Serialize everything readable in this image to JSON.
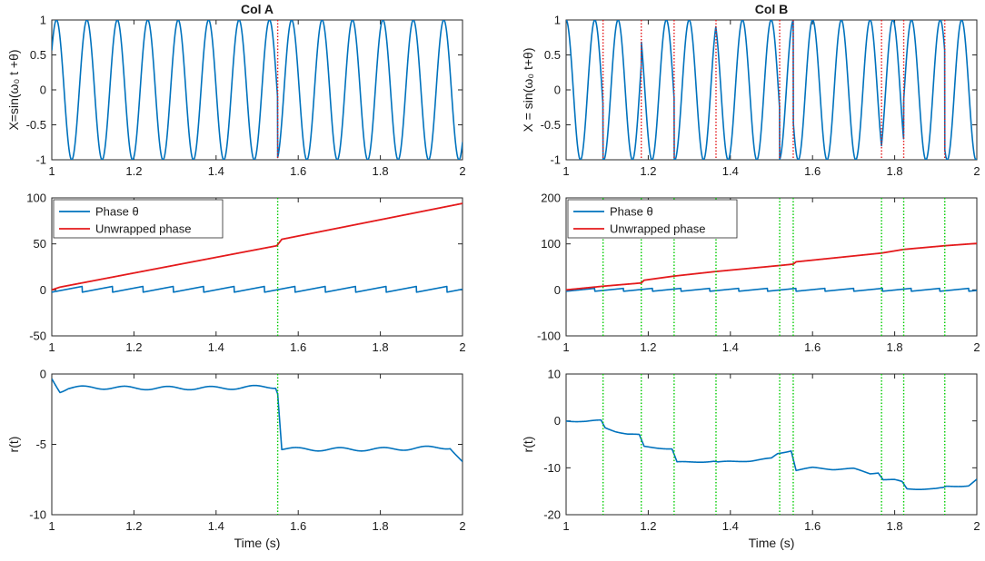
{
  "colors": {
    "signal": "#0072BD",
    "phase": "#0072BD",
    "unwrapped": "#E41A1C",
    "marker_red": "#E41A1C",
    "marker_green": "#00CC00",
    "axis": "#262626",
    "legend_border": "#262626"
  },
  "chart_data": [
    {
      "id": "A-signal",
      "type": "line",
      "title": "Col A",
      "ylabel": "X=sin(ω₀ t +θ)",
      "xlim": [
        1,
        2
      ],
      "ylim": [
        -1,
        1
      ],
      "xticks": [
        1,
        1.2,
        1.4,
        1.6,
        1.8,
        2
      ],
      "xtick_labels": [
        "1",
        "1.2",
        "1.4",
        "1.6",
        "1.8",
        "2"
      ],
      "yticks": [
        -1,
        -0.5,
        0,
        0.5,
        1
      ],
      "ytick_labels": [
        "-1",
        "-0.5",
        "0",
        "0.5",
        "1"
      ],
      "series": [
        {
          "name": "X",
          "kind": "sine",
          "frequency_hz": 13.5,
          "phase_at_start_rad": 0.6,
          "jumps": [
            {
              "t": 1.55,
              "delta_rad": 1.7
            }
          ]
        }
      ],
      "markers": {
        "color": "red",
        "t": [
          1.55
        ]
      }
    },
    {
      "id": "A-phase",
      "type": "line",
      "xlim": [
        1,
        2
      ],
      "ylim": [
        -50,
        100
      ],
      "xticks": [
        1,
        1.2,
        1.4,
        1.6,
        1.8,
        2
      ],
      "xtick_labels": [
        "1",
        "1.2",
        "1.4",
        "1.6",
        "1.8",
        "2"
      ],
      "yticks": [
        -50,
        0,
        50,
        100
      ],
      "ytick_labels": [
        "-50",
        "0",
        "50",
        "100"
      ],
      "legend": {
        "location": "top-left",
        "entries": [
          "Phase θ",
          "Unwrapped phase"
        ]
      },
      "series": [
        {
          "name": "Phase θ",
          "kind": "wrapped",
          "start": -2.5,
          "amplitude": 6.28,
          "period_s": 0.074
        },
        {
          "name": "Unwrapped phase",
          "kind": "ramp",
          "x": [
            1.0,
            1.02,
            1.548,
            1.56,
            2.0
          ],
          "y": [
            0,
            3,
            48,
            55,
            94
          ]
        }
      ],
      "markers": {
        "color": "green",
        "t": [
          1.55
        ]
      }
    },
    {
      "id": "A-r",
      "type": "line",
      "ylabel": "r(t)",
      "xlabel": "Time (s)",
      "xlim": [
        1,
        2
      ],
      "ylim": [
        -10,
        0
      ],
      "xticks": [
        1,
        1.2,
        1.4,
        1.6,
        1.8,
        2
      ],
      "xtick_labels": [
        "1",
        "1.2",
        "1.4",
        "1.6",
        "1.8",
        "2"
      ],
      "yticks": [
        -10,
        -5,
        0
      ],
      "ytick_labels": [
        "-10",
        "-5",
        "0"
      ],
      "series": [
        {
          "name": "r(t)",
          "kind": "steps",
          "x": [
            1.0,
            1.02,
            1.04,
            1.1,
            1.2,
            1.4,
            1.545,
            1.55,
            1.56,
            1.6,
            1.8,
            1.97,
            2.0
          ],
          "y": [
            -0.3,
            -1.2,
            -1.0,
            -0.95,
            -1.0,
            -1.0,
            -0.9,
            -1.3,
            -5.3,
            -5.35,
            -5.35,
            -5.2,
            -6.3
          ]
        }
      ],
      "markers": {
        "color": "green",
        "t": [
          1.55
        ]
      }
    },
    {
      "id": "B-signal",
      "type": "line",
      "title": "Col B",
      "ylabel": "X = sin(ω₀ t+θ)",
      "xlim": [
        1,
        2
      ],
      "ylim": [
        -1,
        1
      ],
      "xticks": [
        1,
        1.2,
        1.4,
        1.6,
        1.8,
        2
      ],
      "xtick_labels": [
        "1",
        "1.2",
        "1.4",
        "1.6",
        "1.8",
        "2"
      ],
      "yticks": [
        -1,
        -0.5,
        0,
        0.5,
        1
      ],
      "ytick_labels": [
        "-1",
        "-0.5",
        "0",
        "0.5",
        "1"
      ],
      "series": [
        {
          "name": "X",
          "kind": "sine",
          "frequency_hz": 14.3,
          "phase_at_start_rad": 1.57,
          "jumps": [
            {
              "t": 1.09,
              "delta_rad": 1.2
            },
            {
              "t": 1.183,
              "delta_rad": 2.0
            },
            {
              "t": 1.263,
              "delta_rad": 1.3
            },
            {
              "t": 1.365,
              "delta_rad": 0.9
            },
            {
              "t": 1.52,
              "delta_rad": 1.4
            },
            {
              "t": 1.553,
              "delta_rad": 2.1
            },
            {
              "t": 1.768,
              "delta_rad": 1.3
            },
            {
              "t": 1.822,
              "delta_rad": 2.2
            },
            {
              "t": 1.922,
              "delta_rad": 1.6
            }
          ]
        }
      ],
      "markers": {
        "color": "red",
        "t": [
          1.09,
          1.183,
          1.263,
          1.365,
          1.52,
          1.553,
          1.768,
          1.822,
          1.922
        ]
      }
    },
    {
      "id": "B-phase",
      "type": "line",
      "xlim": [
        1,
        2
      ],
      "ylim": [
        -100,
        200
      ],
      "xticks": [
        1,
        1.2,
        1.4,
        1.6,
        1.8,
        2
      ],
      "xtick_labels": [
        "1",
        "1.2",
        "1.4",
        "1.6",
        "1.8",
        "2"
      ],
      "yticks": [
        -100,
        0,
        100,
        200
      ],
      "ytick_labels": [
        "-100",
        "0",
        "100",
        "200"
      ],
      "legend": {
        "location": "top-left",
        "entries": [
          "Phase θ",
          "Unwrapped phase"
        ]
      },
      "series": [
        {
          "name": "Phase θ",
          "kind": "wrapped",
          "start": -3,
          "amplitude": 6.28,
          "period_s": 0.07
        },
        {
          "name": "Unwrapped phase",
          "kind": "ramp",
          "x": [
            1.0,
            1.09,
            1.183,
            1.19,
            1.263,
            1.365,
            1.52,
            1.553,
            1.56,
            1.768,
            1.822,
            1.922,
            2.0
          ],
          "y": [
            0,
            8,
            15,
            21,
            30,
            40,
            53,
            56,
            61,
            80,
            88,
            96,
            101
          ]
        }
      ],
      "markers": {
        "color": "green",
        "t": [
          1.09,
          1.183,
          1.263,
          1.365,
          1.52,
          1.553,
          1.768,
          1.822,
          1.922
        ]
      }
    },
    {
      "id": "B-r",
      "type": "line",
      "ylabel": "r(t)",
      "xlabel": "Time (s)",
      "xlim": [
        1,
        2
      ],
      "ylim": [
        -20,
        10
      ],
      "xticks": [
        1,
        1.2,
        1.4,
        1.6,
        1.8,
        2
      ],
      "xtick_labels": [
        "1",
        "1.2",
        "1.4",
        "1.6",
        "1.8",
        "2"
      ],
      "yticks": [
        -20,
        -10,
        0,
        10
      ],
      "ytick_labels": [
        "-20",
        "-10",
        "0",
        "10"
      ],
      "series": [
        {
          "name": "r(t)",
          "kind": "steps",
          "x": [
            1.0,
            1.05,
            1.085,
            1.095,
            1.12,
            1.15,
            1.178,
            1.19,
            1.22,
            1.258,
            1.27,
            1.3,
            1.36,
            1.37,
            1.45,
            1.5,
            1.515,
            1.548,
            1.56,
            1.6,
            1.65,
            1.7,
            1.74,
            1.76,
            1.772,
            1.8,
            1.818,
            1.83,
            1.9,
            1.918,
            1.926,
            1.98,
            2.0
          ],
          "y": [
            0,
            -0.1,
            0.1,
            -1.5,
            -2.2,
            -2.8,
            -3.0,
            -5.5,
            -5.7,
            -6.0,
            -8.8,
            -8.8,
            -8.6,
            -8.8,
            -8.5,
            -8.0,
            -7.0,
            -6.3,
            -10.5,
            -10.0,
            -10.3,
            -10.2,
            -11.2,
            -11.0,
            -12.5,
            -12.6,
            -13.0,
            -14.5,
            -14.5,
            -14.3,
            -14.0,
            -13.8,
            -12.5
          ]
        }
      ],
      "markers": {
        "color": "green",
        "t": [
          1.09,
          1.183,
          1.263,
          1.365,
          1.52,
          1.553,
          1.768,
          1.822,
          1.922
        ]
      }
    }
  ]
}
